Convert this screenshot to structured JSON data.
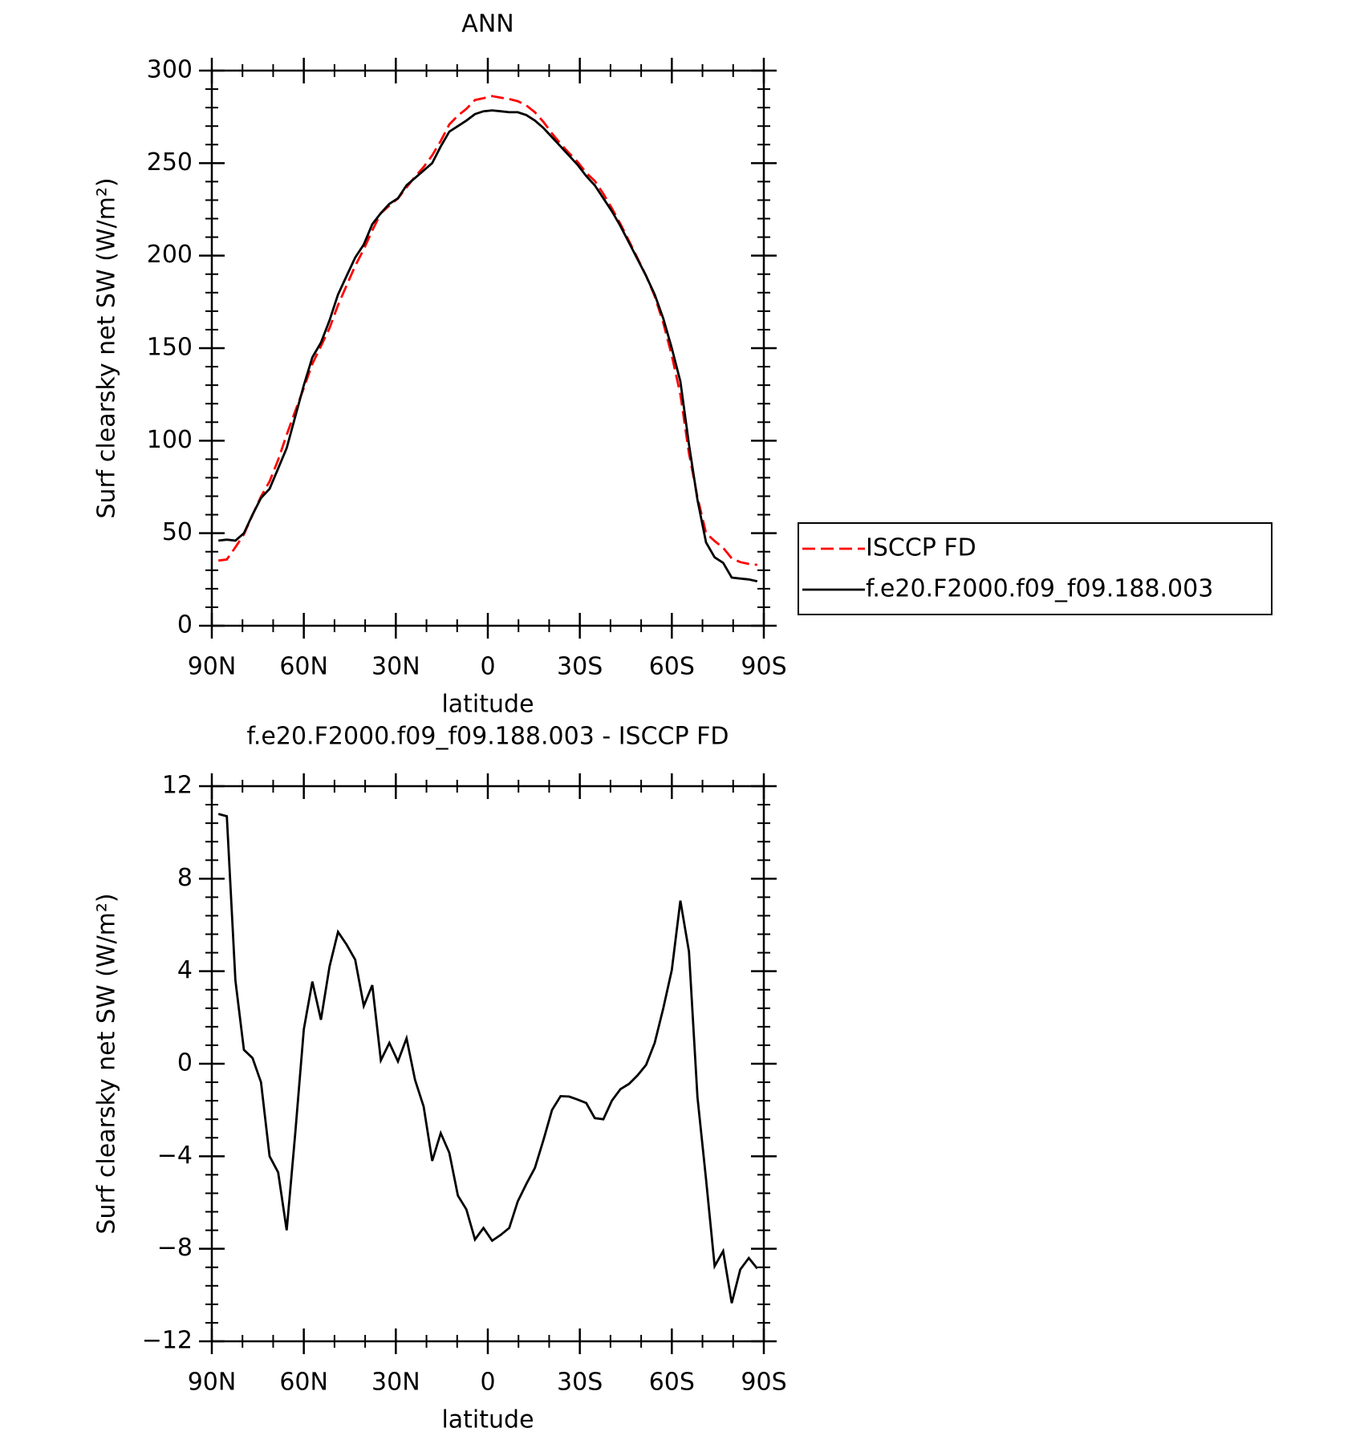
{
  "chart_data": [
    {
      "type": "line",
      "title": "ANN",
      "xlabel": "latitude",
      "ylabel": "Surf clearsky net SW (W/m²)",
      "x": [
        87.86,
        85.1,
        82.31,
        79.53,
        76.74,
        73.95,
        71.16,
        68.37,
        65.58,
        62.79,
        60.0,
        57.21,
        54.42,
        51.63,
        48.84,
        46.04,
        43.25,
        40.46,
        37.67,
        34.88,
        32.09,
        29.3,
        26.51,
        23.72,
        20.93,
        18.14,
        15.35,
        12.56,
        9.77,
        6.98,
        4.19,
        1.4,
        -1.4,
        -4.19,
        -6.98,
        -9.77,
        -12.56,
        -15.35,
        -18.14,
        -20.93,
        -23.72,
        -26.51,
        -29.3,
        -32.09,
        -34.88,
        -37.67,
        -40.46,
        -43.25,
        -46.04,
        -48.84,
        -51.63,
        -54.42,
        -57.21,
        -60.0,
        -62.79,
        -65.58,
        -68.37,
        -71.16,
        -73.95,
        -76.74,
        -79.53,
        -82.31,
        -85.1,
        -87.86
      ],
      "series": [
        {
          "name": "ISCCP FD",
          "color": "#ff0000",
          "line_style": "dashed",
          "values": [
            35.2,
            35.8,
            42.4,
            49.4,
            59.8,
            69.8,
            78,
            89.7,
            103.2,
            116,
            128.5,
            141.5,
            151.1,
            160.8,
            173.3,
            183.9,
            194.5,
            203.5,
            213.6,
            222.9,
            227.1,
            230.9,
            236.9,
            242.7,
            247.9,
            254.2,
            262,
            270.9,
            275.7,
            279.3,
            284.1,
            285.1,
            286.2,
            285.4,
            284.6,
            283.5,
            281.2,
            277.5,
            272.3,
            266,
            260.4,
            255.4,
            250.6,
            244.7,
            240.4,
            233.4,
            225.6,
            217.1,
            207.9,
            198.5,
            189.1,
            178.1,
            163.6,
            146,
            125,
            93.2,
            69.5,
            50,
            45.8,
            42.1,
            36.4,
            34.4,
            33.4,
            32.9
          ]
        },
        {
          "name": "f.e20.F2000.f09_f09.188.003",
          "color": "#000000",
          "line_style": "solid",
          "values": [
            46,
            46.5,
            46,
            50,
            60,
            69,
            74,
            85,
            96,
            113,
            130,
            145,
            153,
            165,
            179,
            189,
            199,
            206,
            217,
            223,
            228,
            231,
            238,
            242,
            246,
            250,
            259,
            267,
            270,
            273,
            276.5,
            278,
            278.5,
            278,
            277.5,
            277.5,
            276,
            273,
            269,
            264,
            259,
            254,
            249,
            243,
            238,
            231,
            224,
            216,
            207,
            198,
            189,
            179,
            166,
            150,
            132,
            98,
            68,
            45,
            37,
            34,
            26,
            25.5,
            25,
            24
          ]
        }
      ],
      "xlim": [
        90,
        -90
      ],
      "xticks": [
        {
          "value": 90,
          "label": "90N"
        },
        {
          "value": 60,
          "label": "60N"
        },
        {
          "value": 30,
          "label": "30N"
        },
        0,
        {
          "value": -30,
          "label": "30S"
        },
        {
          "value": -60,
          "label": "60S"
        },
        {
          "value": -90,
          "label": "90S"
        }
      ],
      "ylim": [
        0,
        300
      ],
      "yticks": [
        0,
        50,
        100,
        150,
        200,
        250,
        300
      ],
      "legend": "right"
    },
    {
      "type": "line",
      "title": "f.e20.F2000.f09_f09.188.003 - ISCCP FD",
      "xlabel": "latitude",
      "ylabel": "Surf clearsky net SW (W/m²)",
      "x": [
        87.86,
        85.1,
        82.31,
        79.53,
        76.74,
        73.95,
        71.16,
        68.37,
        65.58,
        62.79,
        60.0,
        57.21,
        54.42,
        51.63,
        48.84,
        46.04,
        43.25,
        40.46,
        37.67,
        34.88,
        32.09,
        29.3,
        26.51,
        23.72,
        20.93,
        18.14,
        15.35,
        12.56,
        9.77,
        6.98,
        4.19,
        1.4,
        -1.4,
        -4.19,
        -6.98,
        -9.77,
        -12.56,
        -15.35,
        -18.14,
        -20.93,
        -23.72,
        -26.51,
        -29.3,
        -32.09,
        -34.88,
        -37.67,
        -40.46,
        -43.25,
        -46.04,
        -48.84,
        -51.63,
        -54.42,
        -57.21,
        -60.0,
        -62.79,
        -65.58,
        -68.37,
        -71.16,
        -73.95,
        -76.74,
        -79.53,
        -82.31,
        -85.1,
        -87.86
      ],
      "series": [
        {
          "color": "#000000",
          "line_style": "solid",
          "values": [
            10.8,
            10.7,
            3.6,
            0.6,
            0.25,
            -0.8,
            -4.0,
            -4.7,
            -7.2,
            -3.0,
            1.5,
            3.55,
            1.9,
            4.2,
            5.7,
            5.15,
            4.5,
            2.5,
            3.4,
            0.15,
            0.9,
            0.1,
            1.1,
            -0.7,
            -1.85,
            -4.2,
            -3.0,
            -3.85,
            -5.7,
            -6.3,
            -7.6,
            -7.1,
            -7.65,
            -7.4,
            -7.1,
            -5.95,
            -5.2,
            -4.5,
            -3.3,
            -2.0,
            -1.4,
            -1.42,
            -1.55,
            -1.7,
            -2.35,
            -2.4,
            -1.6,
            -1.1,
            -0.87,
            -0.5,
            -0.05,
            0.9,
            2.4,
            4.05,
            7.05,
            4.85,
            -1.45,
            -5.0,
            -8.75,
            -8.1,
            -10.35,
            -8.9,
            -8.4,
            -8.85
          ]
        }
      ],
      "xlim": [
        90,
        -90
      ],
      "xticks": [
        {
          "value": 90,
          "label": "90N"
        },
        {
          "value": 60,
          "label": "60N"
        },
        {
          "value": 30,
          "label": "30N"
        },
        0,
        {
          "value": -30,
          "label": "30S"
        },
        {
          "value": -60,
          "label": "60S"
        },
        {
          "value": -90,
          "label": "90S"
        }
      ],
      "ylim": [
        -12,
        12
      ],
      "yticks": [
        {
          "value": -12,
          "label": "−12"
        },
        {
          "value": -8,
          "label": "−8"
        },
        {
          "value": -4,
          "label": "−4"
        },
        0,
        4,
        8,
        12
      ]
    }
  ]
}
